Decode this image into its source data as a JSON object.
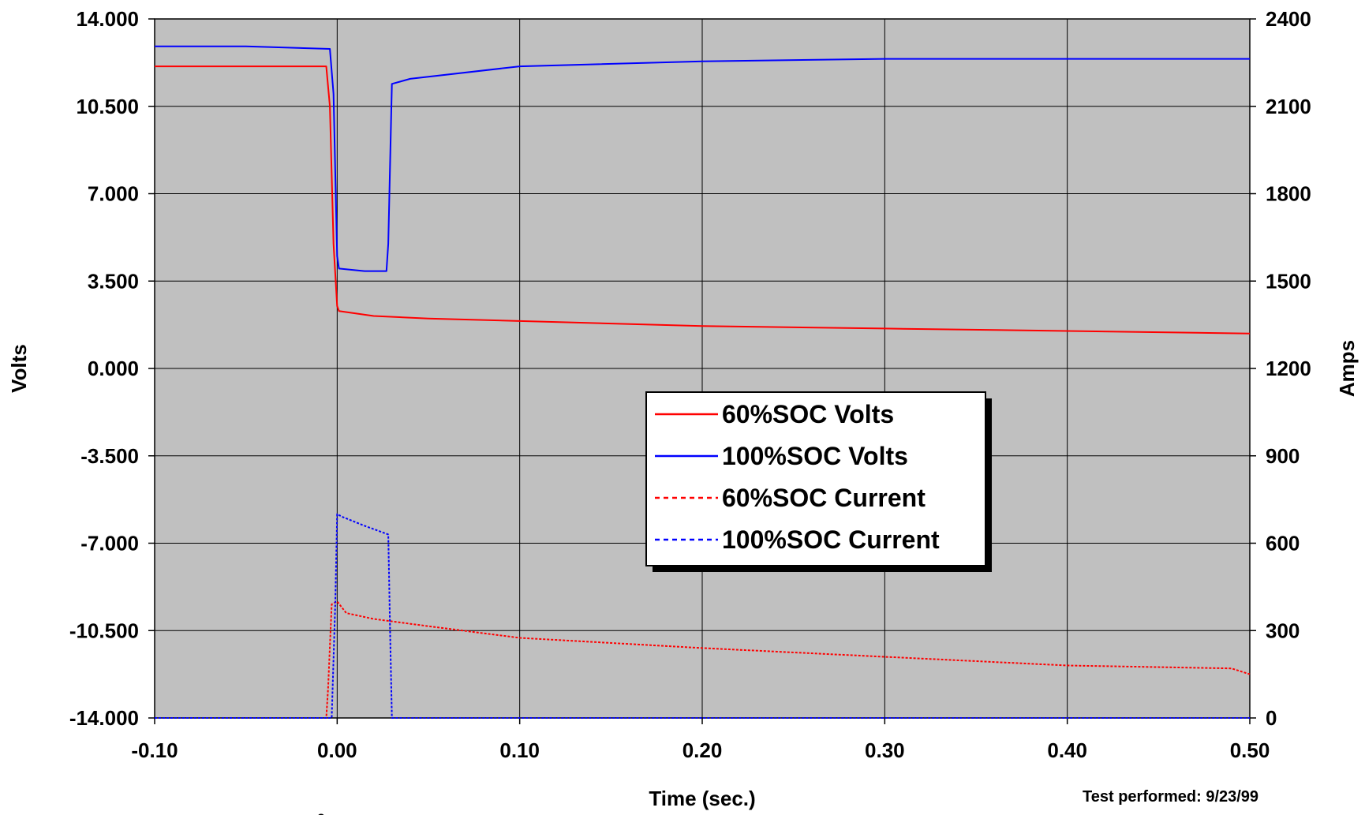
{
  "chart_data": {
    "type": "line",
    "xlabel": "Time (sec.)",
    "ylabel_left": "Volts",
    "ylabel_right": "Amps",
    "xlim": [
      -0.1,
      0.5
    ],
    "ylim_left": [
      -14,
      14
    ],
    "ylim_right": [
      0,
      2400
    ],
    "x_ticks": [
      "-0.10",
      "0.00",
      "0.10",
      "0.20",
      "0.30",
      "0.40",
      "0.50"
    ],
    "y_left_ticks": [
      "14.000",
      "10.500",
      "7.000",
      "3.500",
      "0.000",
      "-3.500",
      "-7.000",
      "-10.500",
      "-14.000"
    ],
    "y_right_ticks": [
      "2400",
      "2100",
      "1800",
      "1500",
      "1200",
      "900",
      "600",
      "300",
      "0"
    ],
    "grid": true,
    "plot_background": "#c0c0c0",
    "legend_placement": "center",
    "series": [
      {
        "name": "60%SOC Volts",
        "axis": "left",
        "color": "#ff0000",
        "style": "solid",
        "points": [
          [
            -0.1,
            12.1
          ],
          [
            -0.05,
            12.1
          ],
          [
            -0.006,
            12.1
          ],
          [
            -0.004,
            10.5
          ],
          [
            -0.002,
            5.0
          ],
          [
            0.0,
            2.5
          ],
          [
            0.001,
            2.3
          ],
          [
            0.02,
            2.1
          ],
          [
            0.05,
            2.0
          ],
          [
            0.1,
            1.9
          ],
          [
            0.2,
            1.7
          ],
          [
            0.3,
            1.6
          ],
          [
            0.4,
            1.5
          ],
          [
            0.5,
            1.4
          ]
        ]
      },
      {
        "name": "100%SOC Volts",
        "axis": "left",
        "color": "#0000ff",
        "style": "solid",
        "points": [
          [
            -0.1,
            12.9
          ],
          [
            -0.05,
            12.9
          ],
          [
            -0.004,
            12.8
          ],
          [
            -0.002,
            11.0
          ],
          [
            0.0,
            4.5
          ],
          [
            0.001,
            4.0
          ],
          [
            0.015,
            3.9
          ],
          [
            0.027,
            3.9
          ],
          [
            0.028,
            5.0
          ],
          [
            0.03,
            11.4
          ],
          [
            0.04,
            11.6
          ],
          [
            0.1,
            12.1
          ],
          [
            0.2,
            12.3
          ],
          [
            0.3,
            12.4
          ],
          [
            0.4,
            12.4
          ],
          [
            0.5,
            12.4
          ]
        ]
      },
      {
        "name": "60%SOC Current",
        "axis": "right",
        "color": "#ff0000",
        "style": "dotted",
        "points": [
          [
            -0.1,
            0
          ],
          [
            -0.006,
            0
          ],
          [
            -0.005,
            100
          ],
          [
            -0.003,
            390
          ],
          [
            0.0,
            400
          ],
          [
            0.005,
            360
          ],
          [
            0.02,
            340
          ],
          [
            0.05,
            315
          ],
          [
            0.1,
            275
          ],
          [
            0.2,
            240
          ],
          [
            0.3,
            210
          ],
          [
            0.4,
            180
          ],
          [
            0.49,
            170
          ],
          [
            0.5,
            150
          ]
        ]
      },
      {
        "name": "100%SOC Current",
        "axis": "right",
        "color": "#0000ff",
        "style": "dotted",
        "points": [
          [
            -0.1,
            0
          ],
          [
            -0.003,
            0
          ],
          [
            -0.001,
            400
          ],
          [
            0.0,
            700
          ],
          [
            0.003,
            690
          ],
          [
            0.015,
            660
          ],
          [
            0.028,
            630
          ],
          [
            0.029,
            300
          ],
          [
            0.03,
            0
          ],
          [
            0.1,
            0
          ],
          [
            0.2,
            0
          ],
          [
            0.3,
            0
          ],
          [
            0.4,
            0
          ],
          [
            0.5,
            0
          ]
        ]
      }
    ]
  },
  "footnote": {
    "test_performed": "Test performed:  9/23/99",
    "degree_mark": "o"
  }
}
